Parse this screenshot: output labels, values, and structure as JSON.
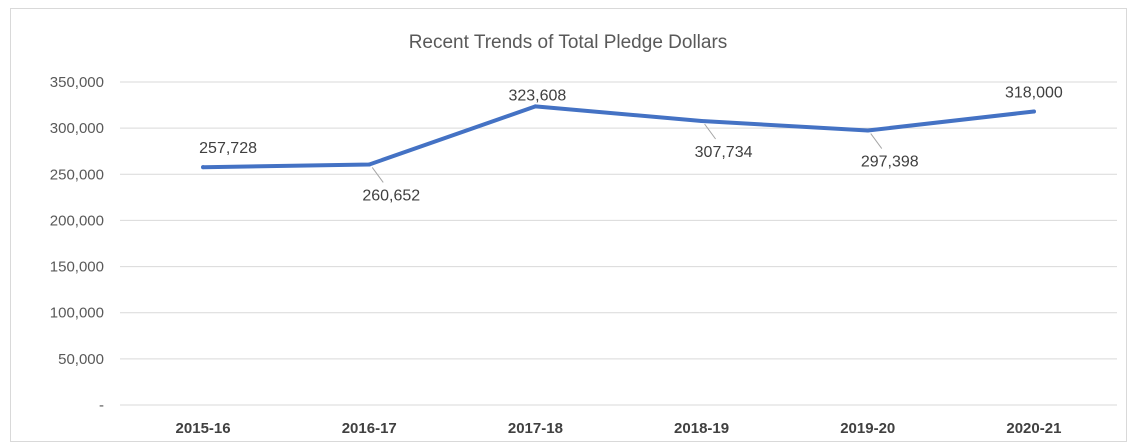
{
  "chart_data": {
    "type": "line",
    "title": "Recent Trends of Total Pledge Dollars",
    "xlabel": "",
    "ylabel": "",
    "categories": [
      "2015-16",
      "2016-17",
      "2017-18",
      "2018-19",
      "2019-20",
      "2020-21"
    ],
    "series": [
      {
        "values": [
          257728,
          260652,
          323608,
          307734,
          297398,
          318000
        ],
        "data_labels": [
          "257,728",
          "260,652",
          "323,608",
          "307,734",
          "297,398",
          "318,000"
        ]
      }
    ],
    "ylim": [
      0,
      350000
    ],
    "yticks": [
      0,
      50000,
      100000,
      150000,
      200000,
      250000,
      300000,
      350000
    ],
    "ytick_labels": [
      "-",
      "50,000",
      "100,000",
      "150,000",
      "200,000",
      "250,000",
      "300,000",
      "350,000"
    ],
    "grid": true,
    "legend": "none",
    "line_color": "#4472c4",
    "grid_color": "#d9d9d9",
    "label_positions": [
      "above",
      "below",
      "above",
      "below",
      "below",
      "above"
    ]
  }
}
